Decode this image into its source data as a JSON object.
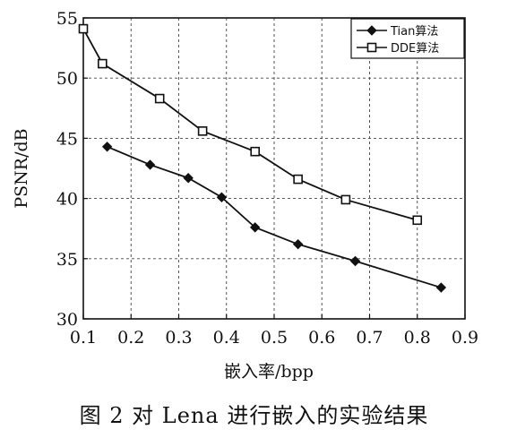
{
  "chart_data": {
    "type": "line",
    "title": "",
    "xlabel": "嵌入率/bpp",
    "ylabel": "PSNR/dB",
    "xlim": [
      0.1,
      0.9
    ],
    "ylim": [
      30,
      55
    ],
    "xticks": [
      "0.1",
      "0.2",
      "0.3",
      "0.4",
      "0.5",
      "0.6",
      "0.7",
      "0.8",
      "0.9"
    ],
    "yticks": [
      "30",
      "35",
      "40",
      "45",
      "50",
      "55"
    ],
    "grid": true,
    "legend_position": "top-right",
    "series": [
      {
        "name": "Tian算法",
        "marker": "diamond",
        "color": "#111111",
        "x": [
          0.15,
          0.24,
          0.32,
          0.39,
          0.46,
          0.55,
          0.67,
          0.85
        ],
        "y": [
          44.3,
          42.8,
          41.7,
          40.1,
          37.6,
          36.2,
          34.8,
          32.6
        ]
      },
      {
        "name": "DDE算法",
        "marker": "square",
        "color": "#111111",
        "x": [
          0.1,
          0.14,
          0.26,
          0.35,
          0.46,
          0.55,
          0.65,
          0.8
        ],
        "y": [
          54.1,
          51.2,
          48.3,
          45.6,
          43.9,
          41.6,
          39.9,
          38.2
        ]
      }
    ]
  },
  "caption": "图 2  对 Lena 进行嵌入的实验结果"
}
